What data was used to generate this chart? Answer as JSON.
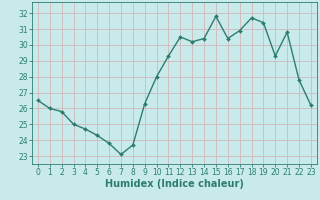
{
  "x": [
    0,
    1,
    2,
    3,
    4,
    5,
    6,
    7,
    8,
    9,
    10,
    11,
    12,
    13,
    14,
    15,
    16,
    17,
    18,
    19,
    20,
    21,
    22,
    23
  ],
  "y": [
    26.5,
    26.0,
    25.8,
    25.0,
    24.7,
    24.3,
    23.8,
    23.1,
    23.7,
    26.3,
    28.0,
    29.3,
    30.5,
    30.2,
    30.4,
    31.8,
    30.4,
    30.9,
    31.7,
    31.4,
    29.3,
    30.8,
    27.8,
    26.2
  ],
  "line_color": "#2d7d6e",
  "marker": "D",
  "marker_size": 2,
  "linewidth": 1.0,
  "bg_color": "#c8eaea",
  "grid_color": "#d0b8b8",
  "tick_color": "#2d7d6e",
  "xlabel": "Humidex (Indice chaleur)",
  "xlabel_fontsize": 7,
  "ylabel_ticks": [
    23,
    24,
    25,
    26,
    27,
    28,
    29,
    30,
    31,
    32
  ],
  "ylim": [
    22.5,
    32.7
  ],
  "xlim": [
    -0.5,
    23.5
  ],
  "xticks": [
    0,
    1,
    2,
    3,
    4,
    5,
    6,
    7,
    8,
    9,
    10,
    11,
    12,
    13,
    14,
    15,
    16,
    17,
    18,
    19,
    20,
    21,
    22,
    23
  ],
  "tick_fontsize": 5.5
}
